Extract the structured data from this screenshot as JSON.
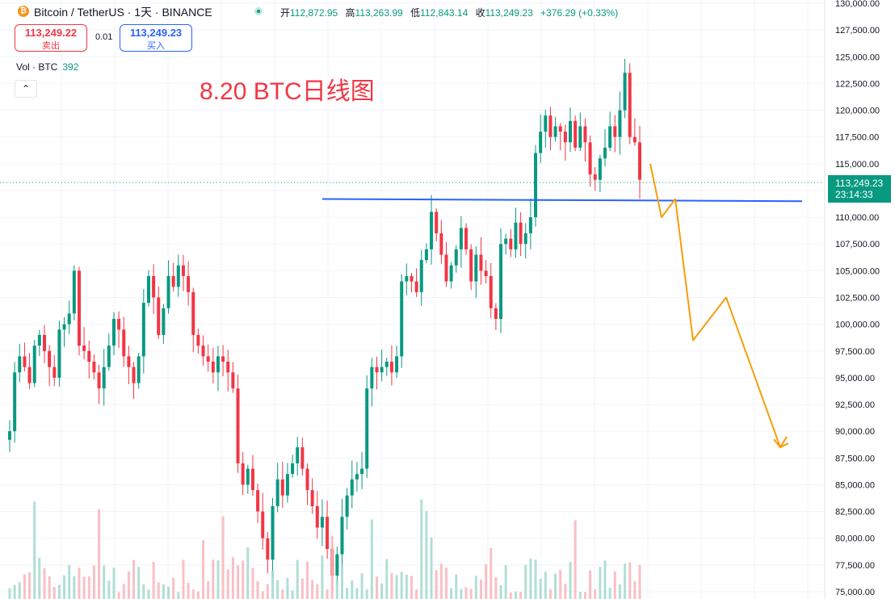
{
  "header": {
    "symbol": "Bitcoin / TetherUS · 1天 · BINANCE",
    "coin_icon": "bitcoin-icon",
    "ohlc": {
      "open_label": "开",
      "open": "112,872.95",
      "high_label": "高",
      "high": "113,263.99",
      "low_label": "低",
      "low": "112,843.14",
      "close_label": "收",
      "close": "113,249.23",
      "change": "+376.29 (+0.33%)"
    }
  },
  "trade": {
    "sell_price": "113,249.22",
    "sell_label": "卖出",
    "spread": "0.01",
    "buy_price": "113,249.23",
    "buy_label": "买入"
  },
  "volume": {
    "label": "Vol · BTC",
    "value": "392"
  },
  "annotation": "8.20 BTC日线图",
  "price_label": {
    "price": "113,249.23",
    "countdown": "23:14:33"
  },
  "colors": {
    "up": "#089981",
    "down": "#f23645",
    "trend": "#2962ff",
    "projection": "#f59e0b"
  },
  "chart_data": {
    "type": "candlestick",
    "ylim": [
      75000,
      130000
    ],
    "y_ticks": [
      "130,000.00",
      "127,500.00",
      "125,000.00",
      "122,500.00",
      "120,000.00",
      "117,500.00",
      "115,000.00",
      "112,500.00",
      "110,000.00",
      "107,500.00",
      "105,000.00",
      "102,500.00",
      "100,000.00",
      "97,500.00",
      "95,000.00",
      "92,500.00",
      "90,000.00",
      "87,500.00",
      "85,000.00",
      "82,500.00",
      "80,000.00",
      "77,500.00",
      "75,000.00"
    ],
    "close_path": [
      90000,
      95500,
      97000,
      96000,
      94500,
      98000,
      99000,
      97500,
      96000,
      95000,
      99500,
      100000,
      101000,
      105000,
      98000,
      97500,
      96500,
      95500,
      94000,
      96000,
      98000,
      100500,
      99500,
      97000,
      96000,
      94500,
      97000,
      102000,
      104500,
      102500,
      99000,
      101500,
      104500,
      103500,
      105500,
      104500,
      103000,
      99000,
      98000,
      97000,
      96500,
      95500,
      97000,
      96500,
      95500,
      94000,
      87000,
      85000,
      86500,
      84500,
      82500,
      80000,
      78000,
      83000,
      85500,
      84000,
      86000,
      87000,
      88500,
      86500,
      84500,
      83000,
      81000,
      82000,
      79000,
      76500,
      78500,
      82000,
      84000,
      85500,
      86000,
      86500,
      94000,
      96000,
      95500,
      96000,
      96500,
      95500,
      97000,
      104000,
      104500,
      104000,
      103000,
      106000,
      107000,
      110500,
      108500,
      106500,
      104000,
      105500,
      107000,
      109000,
      107000,
      104000,
      106500,
      105000,
      104500,
      101500,
      100500,
      107500,
      108000,
      107000,
      109500,
      107500,
      108500,
      110000,
      116000,
      118000,
      119500,
      117500,
      118500,
      118000,
      117000,
      119000,
      116500,
      118500,
      117000,
      114000,
      113500,
      115500,
      116500,
      118500,
      117500,
      120000,
      123500,
      117500,
      117000,
      113500
    ],
    "last_close": 113249.23,
    "trend_line": [
      {
        "i": 63,
        "y": 111700
      },
      {
        "i": 135,
        "y": 111500
      }
    ],
    "projection": [
      115000,
      110000,
      111700,
      98500,
      102500,
      88500,
      89500
    ],
    "volume_max_label": "392"
  }
}
